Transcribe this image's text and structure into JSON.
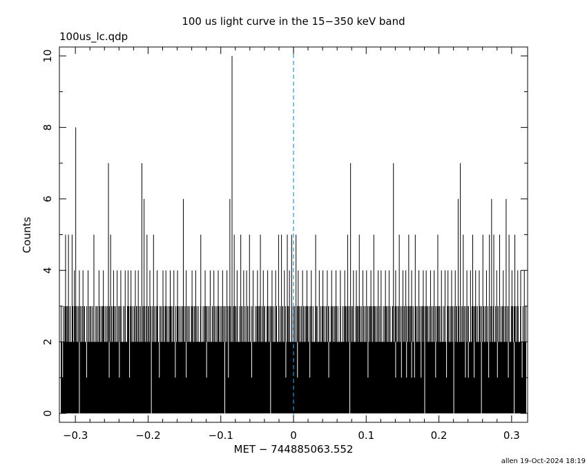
{
  "header": {
    "title": "100 us light curve in the 15−350 keV band",
    "file": "100us_lc.qdp",
    "footer": "allen 19-Oct-2024 18:19"
  },
  "chart_data": {
    "type": "bar",
    "title": "100 us light curve in the 15−350 keV band",
    "xlabel": "MET − 744885063.552",
    "ylabel": "Counts",
    "xlim": [
      -0.322,
      0.322
    ],
    "ylim": [
      -0.25,
      10.25
    ],
    "bin_width": 0.0001,
    "x_start": -0.32,
    "x_end": 0.32,
    "baseline_counts": 2,
    "xticks": [
      -0.3,
      -0.2,
      -0.1,
      0,
      0.1,
      0.2,
      0.3
    ],
    "xtick_labels": [
      "−0.3",
      "−0.2",
      "−0.1",
      "0",
      "0.1",
      "0.2",
      "0.3"
    ],
    "yticks": [
      0,
      2,
      4,
      6,
      8,
      10
    ],
    "ytick_labels": [
      "0",
      "2",
      "4",
      "6",
      "8",
      "10"
    ],
    "trigger_line": {
      "x": 0,
      "style": "dashed",
      "color": "#1f9bd6"
    },
    "peaks": [
      [
        -0.3,
        8
      ],
      [
        -0.314,
        5
      ],
      [
        -0.31,
        5
      ],
      [
        -0.305,
        5
      ],
      [
        -0.302,
        4
      ],
      [
        -0.295,
        4
      ],
      [
        -0.29,
        4
      ],
      [
        -0.283,
        4
      ],
      [
        -0.275,
        5
      ],
      [
        -0.268,
        4
      ],
      [
        -0.262,
        4
      ],
      [
        -0.255,
        7
      ],
      [
        -0.252,
        5
      ],
      [
        -0.248,
        4
      ],
      [
        -0.243,
        4
      ],
      [
        -0.238,
        4
      ],
      [
        -0.232,
        4
      ],
      [
        -0.228,
        4
      ],
      [
        -0.224,
        4
      ],
      [
        -0.218,
        4
      ],
      [
        -0.214,
        4
      ],
      [
        -0.209,
        7
      ],
      [
        -0.206,
        6
      ],
      [
        -0.202,
        5
      ],
      [
        -0.198,
        4
      ],
      [
        -0.193,
        5
      ],
      [
        -0.188,
        4
      ],
      [
        -0.18,
        4
      ],
      [
        -0.176,
        4
      ],
      [
        -0.17,
        4
      ],
      [
        -0.165,
        4
      ],
      [
        -0.16,
        4
      ],
      [
        -0.152,
        6
      ],
      [
        -0.148,
        4
      ],
      [
        -0.14,
        4
      ],
      [
        -0.135,
        4
      ],
      [
        -0.128,
        5
      ],
      [
        -0.122,
        4
      ],
      [
        -0.115,
        4
      ],
      [
        -0.11,
        4
      ],
      [
        -0.104,
        4
      ],
      [
        -0.098,
        4
      ],
      [
        -0.092,
        4
      ],
      [
        -0.088,
        6
      ],
      [
        -0.085,
        10
      ],
      [
        -0.082,
        5
      ],
      [
        -0.078,
        4
      ],
      [
        -0.073,
        5
      ],
      [
        -0.069,
        4
      ],
      [
        -0.065,
        4
      ],
      [
        -0.061,
        5
      ],
      [
        -0.056,
        4
      ],
      [
        -0.05,
        4
      ],
      [
        -0.046,
        5
      ],
      [
        -0.042,
        4
      ],
      [
        -0.036,
        4
      ],
      [
        -0.03,
        4
      ],
      [
        -0.025,
        4
      ],
      [
        -0.021,
        5
      ],
      [
        -0.017,
        5
      ],
      [
        -0.013,
        4
      ],
      [
        -0.009,
        5
      ],
      [
        -0.006,
        4
      ],
      [
        -0.003,
        5
      ],
      [
        0.003,
        5
      ],
      [
        0.006,
        4
      ],
      [
        0.012,
        4
      ],
      [
        0.018,
        4
      ],
      [
        0.024,
        4
      ],
      [
        0.03,
        5
      ],
      [
        0.035,
        4
      ],
      [
        0.04,
        4
      ],
      [
        0.046,
        4
      ],
      [
        0.052,
        4
      ],
      [
        0.058,
        4
      ],
      [
        0.064,
        4
      ],
      [
        0.07,
        4
      ],
      [
        0.074,
        5
      ],
      [
        0.078,
        7
      ],
      [
        0.082,
        4
      ],
      [
        0.086,
        4
      ],
      [
        0.09,
        5
      ],
      [
        0.095,
        4
      ],
      [
        0.1,
        4
      ],
      [
        0.106,
        4
      ],
      [
        0.11,
        5
      ],
      [
        0.116,
        4
      ],
      [
        0.12,
        4
      ],
      [
        0.126,
        4
      ],
      [
        0.131,
        4
      ],
      [
        0.137,
        7
      ],
      [
        0.14,
        4
      ],
      [
        0.145,
        5
      ],
      [
        0.15,
        4
      ],
      [
        0.154,
        4
      ],
      [
        0.158,
        5
      ],
      [
        0.162,
        4
      ],
      [
        0.167,
        5
      ],
      [
        0.172,
        4
      ],
      [
        0.178,
        4
      ],
      [
        0.182,
        4
      ],
      [
        0.188,
        4
      ],
      [
        0.193,
        4
      ],
      [
        0.198,
        5
      ],
      [
        0.203,
        4
      ],
      [
        0.208,
        4
      ],
      [
        0.212,
        4
      ],
      [
        0.217,
        4
      ],
      [
        0.222,
        4
      ],
      [
        0.226,
        6
      ],
      [
        0.229,
        7
      ],
      [
        0.233,
        5
      ],
      [
        0.238,
        4
      ],
      [
        0.243,
        4
      ],
      [
        0.246,
        5
      ],
      [
        0.25,
        4
      ],
      [
        0.255,
        4
      ],
      [
        0.26,
        5
      ],
      [
        0.265,
        4
      ],
      [
        0.269,
        5
      ],
      [
        0.272,
        6
      ],
      [
        0.275,
        5
      ],
      [
        0.279,
        4
      ],
      [
        0.283,
        5
      ],
      [
        0.288,
        4
      ],
      [
        0.292,
        6
      ],
      [
        0.296,
        5
      ],
      [
        0.3,
        4
      ],
      [
        0.304,
        5
      ],
      [
        0.308,
        4
      ],
      [
        0.312,
        4
      ],
      [
        0.317,
        4
      ]
    ],
    "gaps": [
      [
        -0.318,
        1
      ],
      [
        -0.295,
        0
      ],
      [
        -0.285,
        1
      ],
      [
        -0.254,
        1
      ],
      [
        -0.24,
        1
      ],
      [
        -0.226,
        1
      ],
      [
        -0.196,
        0
      ],
      [
        -0.185,
        1
      ],
      [
        -0.163,
        1
      ],
      [
        -0.148,
        1
      ],
      [
        -0.12,
        1
      ],
      [
        -0.095,
        0
      ],
      [
        -0.09,
        1
      ],
      [
        -0.058,
        1
      ],
      [
        -0.032,
        0
      ],
      [
        -0.011,
        1
      ],
      [
        0.005,
        1
      ],
      [
        0.022,
        1
      ],
      [
        0.048,
        1
      ],
      [
        0.077,
        0
      ],
      [
        0.102,
        1
      ],
      [
        0.14,
        1
      ],
      [
        0.148,
        1
      ],
      [
        0.155,
        1
      ],
      [
        0.162,
        1
      ],
      [
        0.166,
        1
      ],
      [
        0.175,
        1
      ],
      [
        0.18,
        0
      ],
      [
        0.195,
        1
      ],
      [
        0.21,
        1
      ],
      [
        0.22,
        0
      ],
      [
        0.236,
        1
      ],
      [
        0.24,
        1
      ],
      [
        0.248,
        1
      ],
      [
        0.258,
        0
      ],
      [
        0.268,
        1
      ],
      [
        0.28,
        1
      ],
      [
        0.295,
        1
      ],
      [
        0.303,
        0
      ],
      [
        0.314,
        1
      ]
    ]
  }
}
